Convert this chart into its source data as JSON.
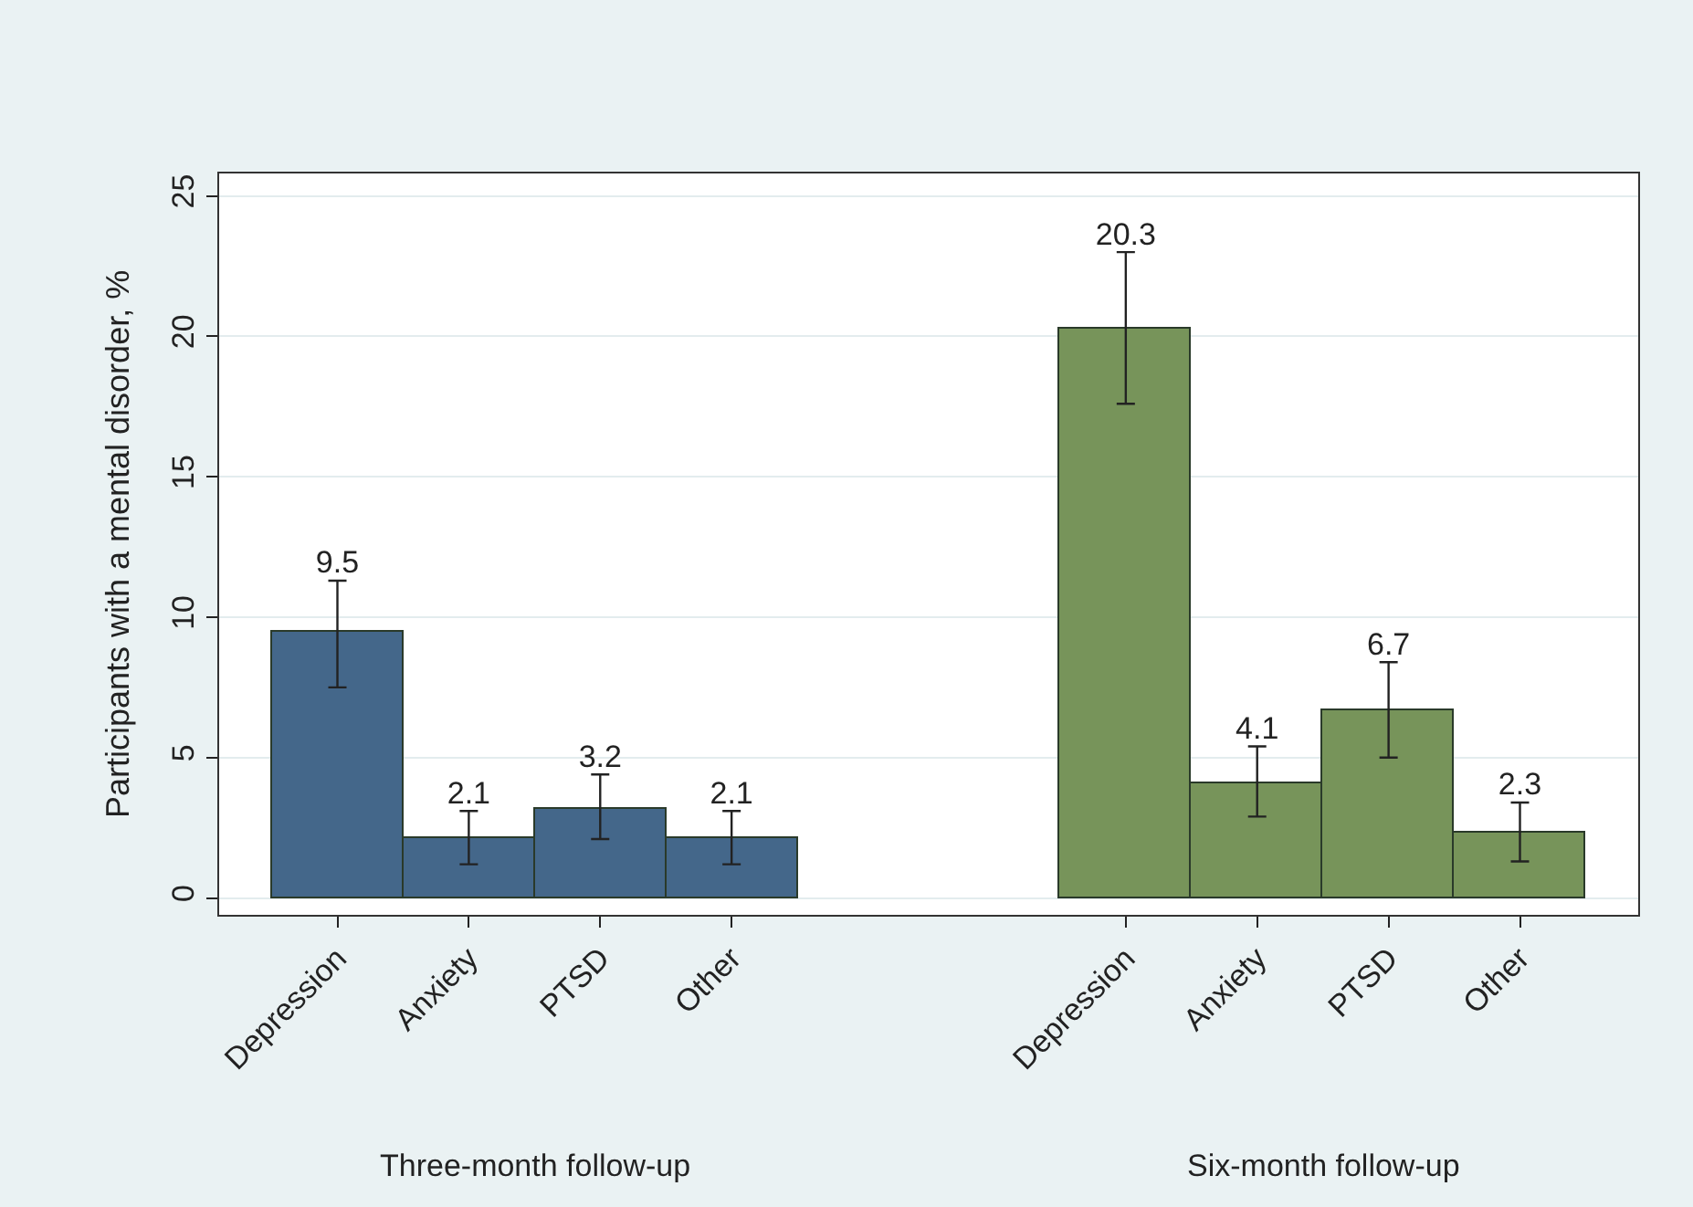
{
  "chart_data": {
    "type": "bar",
    "ylabel": "Participants with a mental disorder, %",
    "categories": [
      "Depression",
      "Anxiety",
      "PTSD",
      "Other",
      null,
      null,
      "Depression",
      "Anxiety",
      "PTSD",
      "Other"
    ],
    "values": [
      9.5,
      2.1,
      3.2,
      2.1,
      null,
      null,
      20.3,
      4.1,
      6.7,
      2.3
    ],
    "colors": [
      "#44678a",
      "#44678a",
      "#44678a",
      "#44678a",
      null,
      null,
      "#77945a",
      "#77945a",
      "#77945a",
      "#77945a"
    ],
    "errors": [
      [
        7.5,
        11.3
      ],
      [
        1.2,
        3.1
      ],
      [
        2.1,
        4.4
      ],
      [
        1.2,
        3.1
      ],
      null,
      null,
      [
        17.6,
        23.0
      ],
      [
        2.9,
        5.4
      ],
      [
        5.0,
        8.4
      ],
      [
        1.3,
        3.4
      ]
    ],
    "data_labels": true,
    "ylim": [
      -0.6,
      25.8
    ],
    "yticks": [
      0,
      5,
      10,
      15,
      20,
      25
    ],
    "grid": "y",
    "annotations": [
      "Three-month follow-up",
      "Six-month follow-up"
    ]
  }
}
